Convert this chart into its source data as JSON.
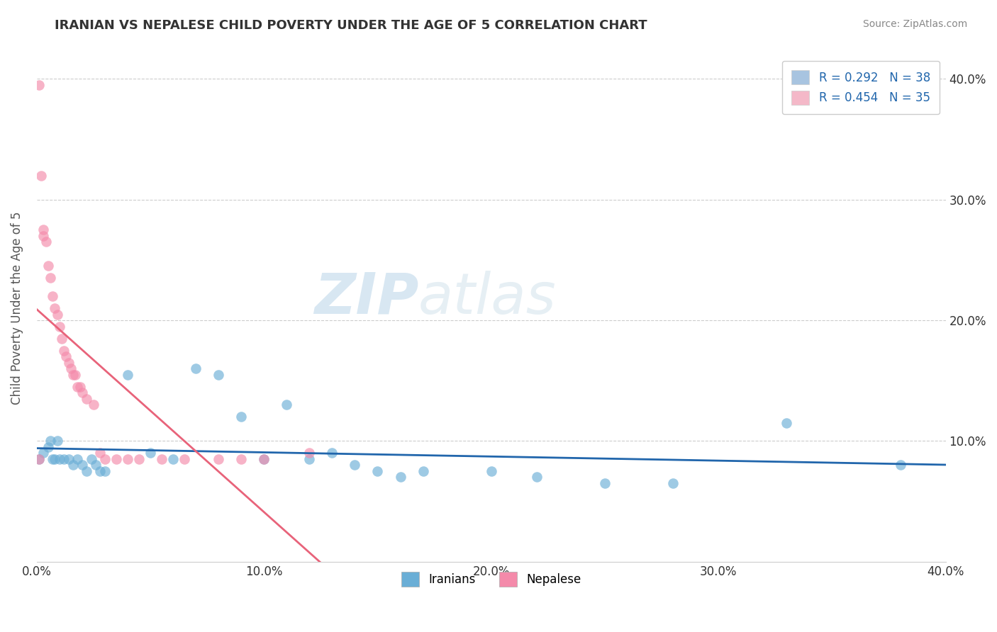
{
  "title": "IRANIAN VS NEPALESE CHILD POVERTY UNDER THE AGE OF 5 CORRELATION CHART",
  "source": "Source: ZipAtlas.com",
  "ylabel": "Child Poverty Under the Age of 5",
  "xlim": [
    0.0,
    0.4
  ],
  "ylim": [
    0.0,
    0.42
  ],
  "xtick_labels": [
    "0.0%",
    "10.0%",
    "20.0%",
    "30.0%",
    "40.0%"
  ],
  "xtick_values": [
    0.0,
    0.1,
    0.2,
    0.3,
    0.4
  ],
  "ytick_values": [
    0.1,
    0.2,
    0.3,
    0.4
  ],
  "right_ytick_labels": [
    "10.0%",
    "20.0%",
    "30.0%",
    "40.0%"
  ],
  "right_ytick_values": [
    0.1,
    0.2,
    0.3,
    0.4
  ],
  "legend_entries": [
    {
      "label": "R = 0.292   N = 38",
      "color": "#a8c4e0"
    },
    {
      "label": "R = 0.454   N = 35",
      "color": "#f4b8c8"
    }
  ],
  "legend_labels_bottom": [
    "Iranians",
    "Nepalese"
  ],
  "iranians_color": "#6aaed6",
  "nepalese_color": "#f48aaa",
  "trend_iranian_color": "#2166ac",
  "trend_nepalese_color": "#e8637a",
  "watermark_zip": "ZIP",
  "watermark_atlas": "atlas",
  "iranians_x": [
    0.001,
    0.003,
    0.005,
    0.006,
    0.007,
    0.008,
    0.009,
    0.01,
    0.012,
    0.014,
    0.016,
    0.018,
    0.02,
    0.022,
    0.024,
    0.026,
    0.028,
    0.03,
    0.04,
    0.05,
    0.06,
    0.07,
    0.08,
    0.09,
    0.1,
    0.11,
    0.12,
    0.13,
    0.14,
    0.15,
    0.16,
    0.17,
    0.2,
    0.22,
    0.25,
    0.28,
    0.33,
    0.38
  ],
  "iranians_y": [
    0.085,
    0.09,
    0.095,
    0.1,
    0.085,
    0.085,
    0.1,
    0.085,
    0.085,
    0.085,
    0.08,
    0.085,
    0.08,
    0.075,
    0.085,
    0.08,
    0.075,
    0.075,
    0.155,
    0.09,
    0.085,
    0.16,
    0.155,
    0.12,
    0.085,
    0.13,
    0.085,
    0.09,
    0.08,
    0.075,
    0.07,
    0.075,
    0.075,
    0.07,
    0.065,
    0.065,
    0.115,
    0.08
  ],
  "nepalese_x": [
    0.001,
    0.002,
    0.003,
    0.004,
    0.005,
    0.006,
    0.007,
    0.008,
    0.009,
    0.01,
    0.011,
    0.012,
    0.013,
    0.014,
    0.015,
    0.016,
    0.017,
    0.018,
    0.019,
    0.02,
    0.022,
    0.025,
    0.028,
    0.03,
    0.035,
    0.04,
    0.045,
    0.055,
    0.065,
    0.08,
    0.09,
    0.1,
    0.12,
    0.001,
    0.003
  ],
  "nepalese_y": [
    0.395,
    0.32,
    0.27,
    0.265,
    0.245,
    0.235,
    0.22,
    0.21,
    0.205,
    0.195,
    0.185,
    0.175,
    0.17,
    0.165,
    0.16,
    0.155,
    0.155,
    0.145,
    0.145,
    0.14,
    0.135,
    0.13,
    0.09,
    0.085,
    0.085,
    0.085,
    0.085,
    0.085,
    0.085,
    0.085,
    0.085,
    0.085,
    0.09,
    0.085,
    0.275
  ],
  "background_color": "#ffffff",
  "grid_color": "#cccccc"
}
